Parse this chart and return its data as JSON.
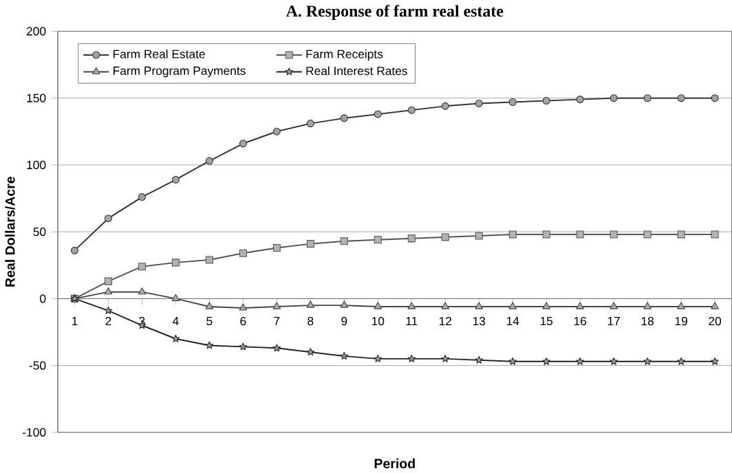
{
  "chart_data": {
    "type": "line",
    "title": "A. Response of farm real estate",
    "xlabel": "Period",
    "ylabel": "Real Dollars/Acre",
    "categories": [
      "1",
      "2",
      "3",
      "4",
      "5",
      "6",
      "7",
      "8",
      "9",
      "10",
      "11",
      "12",
      "13",
      "14",
      "15",
      "16",
      "17",
      "18",
      "19",
      "20"
    ],
    "series": [
      {
        "name": "Farm Real Estate",
        "color": "#333333",
        "marker": "circle",
        "values": [
          36,
          60,
          76,
          89,
          103,
          116,
          125,
          131,
          135,
          138,
          141,
          144,
          146,
          147,
          148,
          149,
          150,
          150,
          150,
          150
        ]
      },
      {
        "name": "Farm Receipts",
        "color": "#555555",
        "marker": "square",
        "values": [
          0,
          13,
          24,
          27,
          29,
          34,
          38,
          41,
          43,
          44,
          45,
          46,
          47,
          48,
          48,
          48,
          48,
          48,
          48,
          48
        ]
      },
      {
        "name": "Farm Program Payments",
        "color": "#444444",
        "marker": "triangle",
        "values": [
          0,
          5,
          5,
          0,
          -6,
          -7,
          -6,
          -5,
          -5,
          -6,
          -6,
          -6,
          -6,
          -6,
          -6,
          -6,
          -6,
          -6,
          -6,
          -6
        ]
      },
      {
        "name": "Real Interest Rates",
        "color": "#222222",
        "marker": "star",
        "values": [
          0,
          -9,
          -20,
          -30,
          -35,
          -36,
          -37,
          -40,
          -43,
          -45,
          -45,
          -45,
          -46,
          -47,
          -47,
          -47,
          -47,
          -47,
          -47,
          -47
        ]
      }
    ],
    "ylim": [
      -100,
      200
    ],
    "yticks": [
      -100,
      -50,
      0,
      50,
      100,
      150,
      200
    ],
    "grid": "y",
    "legend": "top left",
    "line_style": "solid"
  }
}
